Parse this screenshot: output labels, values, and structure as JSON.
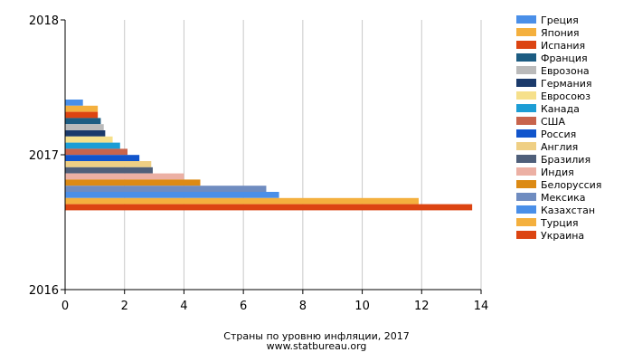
{
  "chart_data": {
    "type": "bar",
    "orientation": "horizontal",
    "title": "Страны по уровню инфляции, 2017",
    "source": "www.statbureau.org",
    "xlim": [
      0,
      14
    ],
    "x_ticks": [
      "0",
      "2",
      "4",
      "6",
      "8",
      "10",
      "12",
      "14"
    ],
    "y_ticks": [
      "2016",
      "2017",
      "2018"
    ],
    "grid": true,
    "legend_position": "right",
    "category": "2017",
    "series": [
      {
        "name": "Греция",
        "value": 0.6,
        "color": "#4a8fe8"
      },
      {
        "name": "Япония",
        "value": 1.1,
        "color": "#f4b03e"
      },
      {
        "name": "Испания",
        "value": 1.1,
        "color": "#dc4412"
      },
      {
        "name": "Франция",
        "value": 1.2,
        "color": "#1c5c82"
      },
      {
        "name": "Еврозона",
        "value": 1.3,
        "color": "#bababa"
      },
      {
        "name": "Германия",
        "value": 1.35,
        "color": "#1b3a6b"
      },
      {
        "name": "Евросоюз",
        "value": 1.6,
        "color": "#f6e08b"
      },
      {
        "name": "Канада",
        "value": 1.85,
        "color": "#1c9dd5"
      },
      {
        "name": "США",
        "value": 2.1,
        "color": "#c8644c"
      },
      {
        "name": "Россия",
        "value": 2.5,
        "color": "#1155cc"
      },
      {
        "name": "Англия",
        "value": 2.9,
        "color": "#efcf84"
      },
      {
        "name": "Бразилия",
        "value": 2.95,
        "color": "#4f5f7a"
      },
      {
        "name": "Индия",
        "value": 4.0,
        "color": "#ecb0a4"
      },
      {
        "name": "Белоруссия",
        "value": 4.55,
        "color": "#dc8a14"
      },
      {
        "name": "Мексика",
        "value": 6.77,
        "color": "#6f8cc0"
      },
      {
        "name": "Казахстан",
        "value": 7.2,
        "color": "#4a8fe8"
      },
      {
        "name": "Турция",
        "value": 11.9,
        "color": "#f4b03e"
      },
      {
        "name": "Украина",
        "value": 13.7,
        "color": "#dc4412"
      }
    ]
  }
}
